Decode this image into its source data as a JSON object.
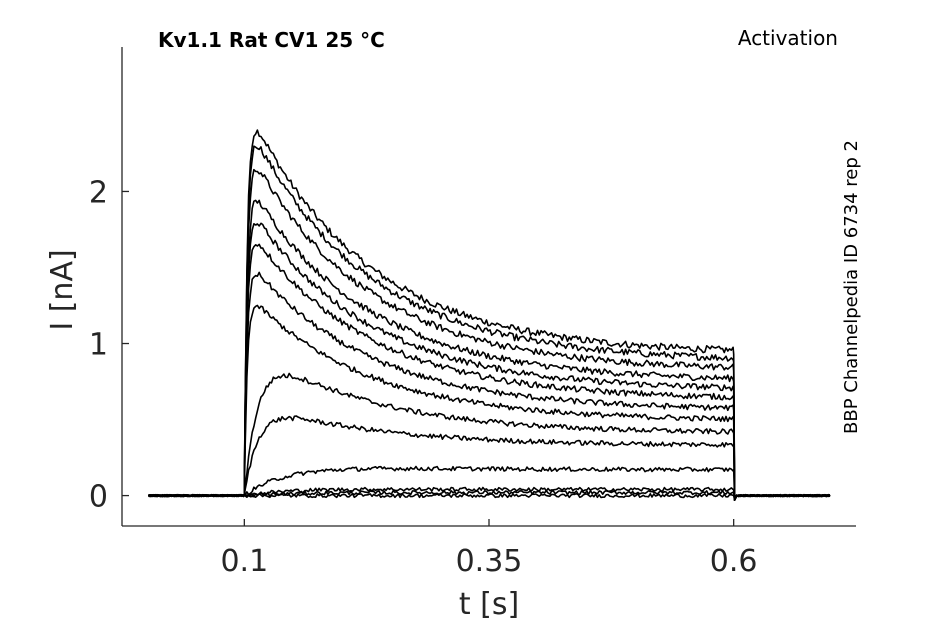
{
  "chart_data": {
    "type": "line",
    "title": "Kv1.1  Rat  CV1  25 °C",
    "protocol": "Activation",
    "source": "BBP Channelpedia ID 6734 rep 2",
    "xlabel": "t [s]",
    "ylabel": "I [nA]",
    "xlim": [
      -0.025,
      0.725
    ],
    "ylim": [
      -0.2,
      2.95
    ],
    "xticks": [
      0.1,
      0.35,
      0.6
    ],
    "xtick_labels": [
      "0.1",
      "0.35",
      "0.6"
    ],
    "yticks": [
      0,
      1,
      2
    ],
    "ytick_labels": [
      "0",
      "1",
      "2"
    ],
    "grid": false,
    "stimulus": {
      "baseline_start": 0.002,
      "step_on": 0.1,
      "step_off": 0.6,
      "end": 0.7
    },
    "series": [
      {
        "peak": 2.6,
        "steady": 0.93
      },
      {
        "peak": 2.5,
        "steady": 0.88
      },
      {
        "peak": 2.33,
        "steady": 0.82
      },
      {
        "peak": 2.1,
        "steady": 0.75
      },
      {
        "peak": 1.95,
        "steady": 0.69
      },
      {
        "peak": 1.8,
        "steady": 0.63
      },
      {
        "peak": 1.58,
        "steady": 0.56
      },
      {
        "peak": 1.35,
        "steady": 0.49
      },
      {
        "peak": 1.02,
        "steady": 0.41
      },
      {
        "peak": 0.63,
        "steady": 0.33
      },
      {
        "peak": 0.22,
        "steady": 0.17
      },
      {
        "peak": 0.05,
        "steady": 0.04
      },
      {
        "peak": 0.02,
        "steady": 0.02
      },
      {
        "peak": 0.0,
        "steady": 0.0
      }
    ]
  }
}
